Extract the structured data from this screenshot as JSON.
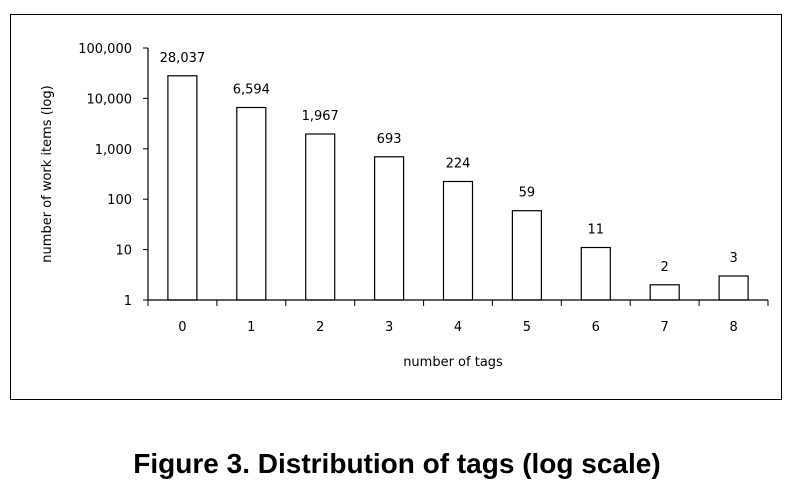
{
  "chart_data": {
    "type": "bar",
    "xlabel": "number of tags",
    "ylabel": "number of work items (log)",
    "yscale": "log",
    "ylim": [
      1,
      100000
    ],
    "y_ticks": [
      1,
      10,
      100,
      1000,
      10000,
      100000
    ],
    "y_tick_labels": [
      "1",
      "10",
      "100",
      "1,000",
      "10,000",
      "100,000"
    ],
    "categories": [
      "0",
      "1",
      "2",
      "3",
      "4",
      "5",
      "6",
      "7",
      "8"
    ],
    "values": [
      28037,
      6594,
      1967,
      693,
      224,
      59,
      11,
      2,
      3
    ],
    "value_labels": [
      "28,037",
      "6,594",
      "1,967",
      "693",
      "224",
      "59",
      "11",
      "2",
      "3"
    ],
    "grid": false,
    "legend": "none",
    "bar_fill": "#ffffff",
    "bar_stroke": "#000000"
  },
  "caption": "Figure 3. Distribution of tags (log scale)"
}
